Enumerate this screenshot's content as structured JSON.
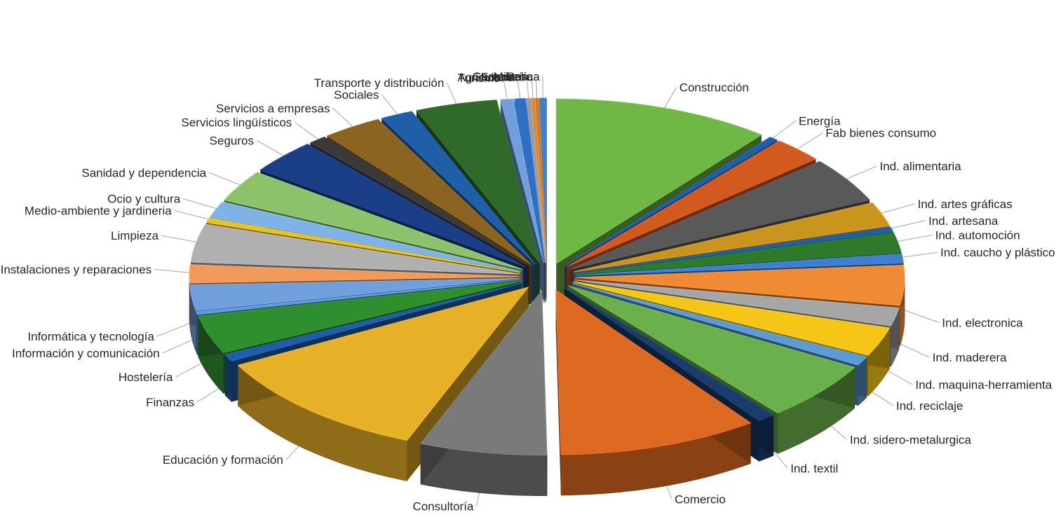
{
  "chart_data": {
    "type": "pie",
    "style": "3d exploded pie",
    "title": "",
    "legend": "none",
    "data_labels": "category names with leader lines",
    "slices": [
      {
        "label": "Construcción",
        "value": 12.0,
        "color": "#70b845"
      },
      {
        "label": "Energía",
        "value": 0.5,
        "color": "#1f5fa8"
      },
      {
        "label": "Fab bienes consumo",
        "value": 2.8,
        "color": "#d25a1f"
      },
      {
        "label": "Ind. alimentaria",
        "value": 5.0,
        "color": "#595959"
      },
      {
        "label": "Ind. artes gráficas",
        "value": 2.7,
        "color": "#c9951e"
      },
      {
        "label": "Ind. artesana",
        "value": 0.5,
        "color": "#1f5fa8"
      },
      {
        "label": "Ind. automoción",
        "value": 2.2,
        "color": "#2e7a2a"
      },
      {
        "label": "Ind. caucho y plástico",
        "value": 1.0,
        "color": "#3f7fd0"
      },
      {
        "label": "Ind. electronica",
        "value": 4.4,
        "color": "#f08a34"
      },
      {
        "label": "Ind. maderera",
        "value": 2.0,
        "color": "#a6a6a6"
      },
      {
        "label": "Ind. maquina-herramienta",
        "value": 3.2,
        "color": "#f5c518"
      },
      {
        "label": "Ind. reciclaje",
        "value": 1.0,
        "color": "#5d9bd5"
      },
      {
        "label": "Ind. sidero-metalurgica",
        "value": 6.5,
        "color": "#6ab04c"
      },
      {
        "label": "Ind. textil",
        "value": 1.0,
        "color": "#1a3d6e"
      },
      {
        "label": "Comercio",
        "value": 11.0,
        "color": "#de6a22"
      },
      {
        "label": "Consultoría",
        "value": 7.0,
        "color": "#7a7a7a"
      },
      {
        "label": "Educación y formación",
        "value": 12.5,
        "color": "#e6b027"
      },
      {
        "label": "Finanzas",
        "value": 0.8,
        "color": "#1f5fa8"
      },
      {
        "label": "Hostelería",
        "value": 4.2,
        "color": "#2f8f2f"
      },
      {
        "label": "Información y comunicación",
        "value": 0.3,
        "color": "#5d9bd5"
      },
      {
        "label": "Informática y tecnología",
        "value": 2.8,
        "color": "#6fa0dc"
      },
      {
        "label": "Instalaciones y reparaciones",
        "value": 2.0,
        "color": "#f29a5c"
      },
      {
        "label": "Limpieza",
        "value": 4.2,
        "color": "#b0b0b0"
      },
      {
        "label": "Medio-ambiente y jardineria",
        "value": 0.5,
        "color": "#e8c020"
      },
      {
        "label": "Ocio y cultura",
        "value": 1.8,
        "color": "#7fb2e5"
      },
      {
        "label": "Sanidad y dependencia",
        "value": 3.5,
        "color": "#8cc26b"
      },
      {
        "label": "Seguros",
        "value": 3.8,
        "color": "#1b3f86"
      },
      {
        "label": "Servicios lingüísticos",
        "value": 1.0,
        "color": "#3a3a3a"
      },
      {
        "label": "Servicios a empresas",
        "value": 3.3,
        "color": "#8a6420"
      },
      {
        "label": "Sociales",
        "value": 1.8,
        "color": "#1f5fa8"
      },
      {
        "label": "Transporte y distribución",
        "value": 4.5,
        "color": "#2f6a2a"
      },
      {
        "label": "Turismo",
        "value": 0.7,
        "color": "#6fa0dc"
      },
      {
        "label": "Agricultura",
        "value": 0.6,
        "color": "#2e6fc4"
      },
      {
        "label": "Forestal",
        "value": 0.25,
        "color": "#9a9a9a"
      },
      {
        "label": "Ganadería",
        "value": 0.2,
        "color": "#d08a3a"
      },
      {
        "label": "Minería",
        "value": 0.2,
        "color": "#c87a30"
      },
      {
        "label": "Pesca",
        "value": 0.4,
        "color": "#3f7fd0"
      }
    ]
  }
}
